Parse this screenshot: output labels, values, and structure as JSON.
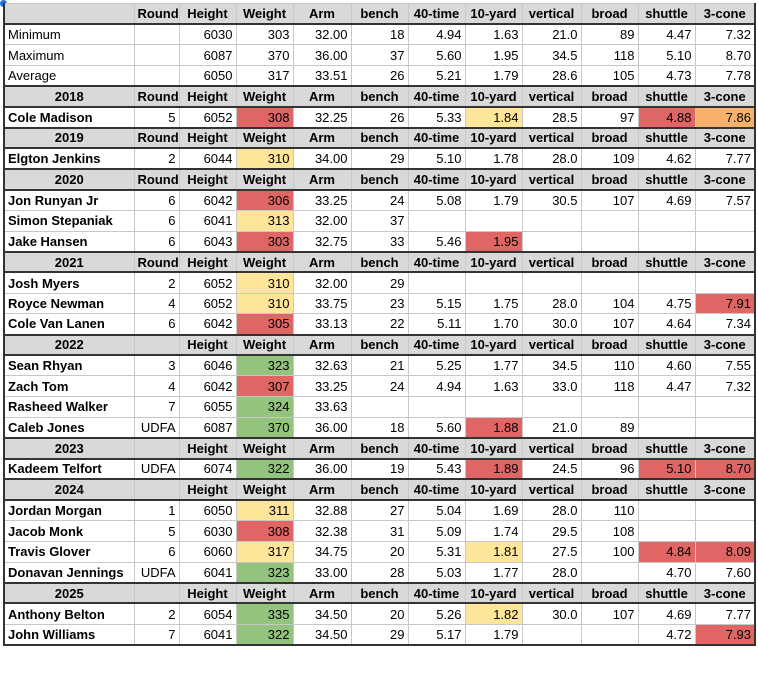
{
  "top": {
    "columns": [
      "Round",
      "Height",
      "Weight",
      "Arm",
      "bench",
      "40-time",
      "10-yard",
      "vertical",
      "broad",
      "shuttle",
      "3-cone"
    ],
    "stats": [
      {
        "label": "Minimum",
        "cells": [
          null,
          "6030",
          "303",
          "32.00",
          "18",
          "4.94",
          "1.63",
          "21.0",
          "89",
          "4.47",
          "7.32"
        ]
      },
      {
        "label": "Maximum",
        "cells": [
          null,
          "6087",
          "370",
          "36.00",
          "37",
          "5.60",
          "1.95",
          "34.5",
          "118",
          "5.10",
          "8.70"
        ]
      },
      {
        "label": "Average",
        "cells": [
          null,
          "6050",
          "317",
          "33.51",
          "26",
          "5.21",
          "1.79",
          "28.6",
          "105",
          "4.73",
          "7.78"
        ]
      }
    ]
  },
  "groups": [
    {
      "year": "2018",
      "header": [
        "Round",
        "Height",
        "Weight",
        "Arm",
        "bench",
        "40-time",
        "10-yard",
        "vertical",
        "broad",
        "shuttle",
        "3-cone"
      ],
      "players": [
        {
          "name": "Cole Madison",
          "cells": [
            "5",
            "6052",
            {
              "text": "308",
              "fill": "#e06666"
            },
            "32.25",
            "26",
            "5.33",
            {
              "text": "1.84",
              "fill": "#ffe599"
            },
            "28.5",
            "97",
            {
              "text": "4.88",
              "fill": "#e06666"
            },
            {
              "text": "7.86",
              "fill": "#f6b26b"
            }
          ]
        }
      ]
    },
    {
      "year": "2019",
      "header": [
        "Round",
        "Height",
        "Weight",
        "Arm",
        "bench",
        "40-time",
        "10-yard",
        "vertical",
        "broad",
        "shuttle",
        "3-cone"
      ],
      "players": [
        {
          "name": "Elgton Jenkins",
          "cells": [
            "2",
            "6044",
            {
              "text": "310",
              "fill": "#ffe599"
            },
            "34.00",
            "29",
            "5.10",
            "1.78",
            "28.0",
            "109",
            "4.62",
            "7.77"
          ]
        }
      ]
    },
    {
      "year": "2020",
      "header": [
        "Round",
        "Height",
        "Weight",
        "Arm",
        "bench",
        "40-time",
        "10-yard",
        "vertical",
        "broad",
        "shuttle",
        "3-cone"
      ],
      "players": [
        {
          "name": "Jon Runyan Jr",
          "cells": [
            "6",
            "6042",
            {
              "text": "306",
              "fill": "#e06666"
            },
            "33.25",
            "24",
            "5.08",
            "1.79",
            "30.5",
            "107",
            "4.69",
            "7.57"
          ]
        },
        {
          "name": "Simon Stepaniak",
          "cells": [
            "6",
            "6041",
            {
              "text": "313",
              "fill": "#ffe599"
            },
            "32.00",
            "37",
            null,
            null,
            null,
            null,
            null,
            null
          ]
        },
        {
          "name": "Jake Hansen",
          "cells": [
            "6",
            "6043",
            {
              "text": "303",
              "fill": "#e06666"
            },
            "32.75",
            "33",
            "5.46",
            {
              "text": "1.95",
              "fill": "#e06666"
            },
            null,
            null,
            null,
            null
          ]
        }
      ]
    },
    {
      "year": "2021",
      "header": [
        "Round",
        "Height",
        "Weight",
        "Arm",
        "bench",
        "40-time",
        "10-yard",
        "vertical",
        "broad",
        "shuttle",
        "3-cone"
      ],
      "players": [
        {
          "name": "Josh Myers",
          "cells": [
            "2",
            "6052",
            {
              "text": "310",
              "fill": "#ffe599"
            },
            "32.00",
            "29",
            null,
            null,
            null,
            null,
            null,
            null
          ]
        },
        {
          "name": "Royce Newman",
          "cells": [
            "4",
            "6052",
            {
              "text": "310",
              "fill": "#ffe599"
            },
            "33.75",
            "23",
            "5.15",
            "1.75",
            "28.0",
            "104",
            "4.75",
            {
              "text": "7.91",
              "fill": "#e06666"
            }
          ]
        },
        {
          "name": "Cole Van Lanen",
          "cells": [
            "6",
            "6042",
            {
              "text": "305",
              "fill": "#e06666"
            },
            "33.13",
            "22",
            "5.11",
            "1.70",
            "30.0",
            "107",
            "4.64",
            "7.34"
          ]
        }
      ]
    },
    {
      "year": "2022",
      "header": [
        null,
        "Height",
        "Weight",
        "Arm",
        "bench",
        "40-time",
        "10-yard",
        "vertical",
        "broad",
        "shuttle",
        "3-cone"
      ],
      "players": [
        {
          "name": "Sean Rhyan",
          "cells": [
            "3",
            "6046",
            {
              "text": "323",
              "fill": "#93c47d"
            },
            "32.63",
            "21",
            "5.25",
            "1.77",
            "34.5",
            "110",
            "4.60",
            "7.55"
          ]
        },
        {
          "name": "Zach Tom",
          "cells": [
            "4",
            "6042",
            {
              "text": "307",
              "fill": "#e06666"
            },
            "33.25",
            "24",
            "4.94",
            "1.63",
            "33.0",
            "118",
            "4.47",
            "7.32"
          ]
        },
        {
          "name": "Rasheed Walker",
          "cells": [
            "7",
            "6055",
            {
              "text": "324",
              "fill": "#93c47d"
            },
            "33.63",
            null,
            null,
            null,
            null,
            null,
            null,
            null
          ]
        },
        {
          "name": "Caleb Jones",
          "cells": [
            "UDFA",
            "6087",
            {
              "text": "370",
              "fill": "#93c47d"
            },
            "36.00",
            "18",
            "5.60",
            {
              "text": "1.88",
              "fill": "#e06666"
            },
            "21.0",
            "89",
            null,
            null
          ]
        }
      ]
    },
    {
      "year": "2023",
      "header": [
        null,
        "Height",
        "Weight",
        "Arm",
        "bench",
        "40-time",
        "10-yard",
        "vertical",
        "broad",
        "shuttle",
        "3-cone"
      ],
      "players": [
        {
          "name": "Kadeem Telfort",
          "cells": [
            "UDFA",
            "6074",
            {
              "text": "322",
              "fill": "#93c47d"
            },
            "36.00",
            "19",
            "5.43",
            {
              "text": "1.89",
              "fill": "#e06666"
            },
            "24.5",
            "96",
            {
              "text": "5.10",
              "fill": "#e06666"
            },
            {
              "text": "8.70",
              "fill": "#e06666"
            }
          ]
        }
      ]
    },
    {
      "year": "2024",
      "header": [
        null,
        "Height",
        "Weight",
        "Arm",
        "bench",
        "40-time",
        "10-yard",
        "vertical",
        "broad",
        "shuttle",
        "3-cone"
      ],
      "players": [
        {
          "name": "Jordan Morgan",
          "cells": [
            "1",
            "6050",
            {
              "text": "311",
              "fill": "#ffe599"
            },
            "32.88",
            "27",
            "5.04",
            "1.69",
            "28.0",
            "110",
            null,
            null
          ]
        },
        {
          "name": "Jacob Monk",
          "cells": [
            "5",
            "6030",
            {
              "text": "308",
              "fill": "#e06666"
            },
            "32.38",
            "31",
            "5.09",
            "1.74",
            "29.5",
            "108",
            null,
            null
          ]
        },
        {
          "name": "Travis Glover",
          "cells": [
            "6",
            "6060",
            {
              "text": "317",
              "fill": "#ffe599"
            },
            "34.75",
            "20",
            "5.31",
            {
              "text": "1.81",
              "fill": "#ffe599"
            },
            "27.5",
            "100",
            {
              "text": "4.84",
              "fill": "#e06666"
            },
            {
              "text": "8.09",
              "fill": "#e06666"
            }
          ]
        },
        {
          "name": "Donavan Jennings",
          "cells": [
            "UDFA",
            "6041",
            {
              "text": "323",
              "fill": "#93c47d"
            },
            "33.00",
            "28",
            "5.03",
            "1.77",
            "28.0",
            null,
            "4.70",
            "7.60"
          ]
        }
      ]
    },
    {
      "year": "2025",
      "header": [
        null,
        "Height",
        "Weight",
        "Arm",
        "bench",
        "40-time",
        "10-yard",
        "vertical",
        "broad",
        "shuttle",
        "3-cone"
      ],
      "players": [
        {
          "name": "Anthony Belton",
          "cells": [
            "2",
            "6054",
            {
              "text": "335",
              "fill": "#93c47d"
            },
            "34.50",
            "20",
            "5.26",
            {
              "text": "1.82",
              "fill": "#ffe599"
            },
            "30.0",
            "107",
            "4.69",
            "7.77"
          ]
        },
        {
          "name": "John Williams",
          "cells": [
            "7",
            "6041",
            {
              "text": "322",
              "fill": "#93c47d"
            },
            "34.50",
            "29",
            "5.17",
            "1.79",
            null,
            null,
            "4.72",
            {
              "text": "7.93",
              "fill": "#e06666"
            }
          ]
        }
      ]
    }
  ]
}
